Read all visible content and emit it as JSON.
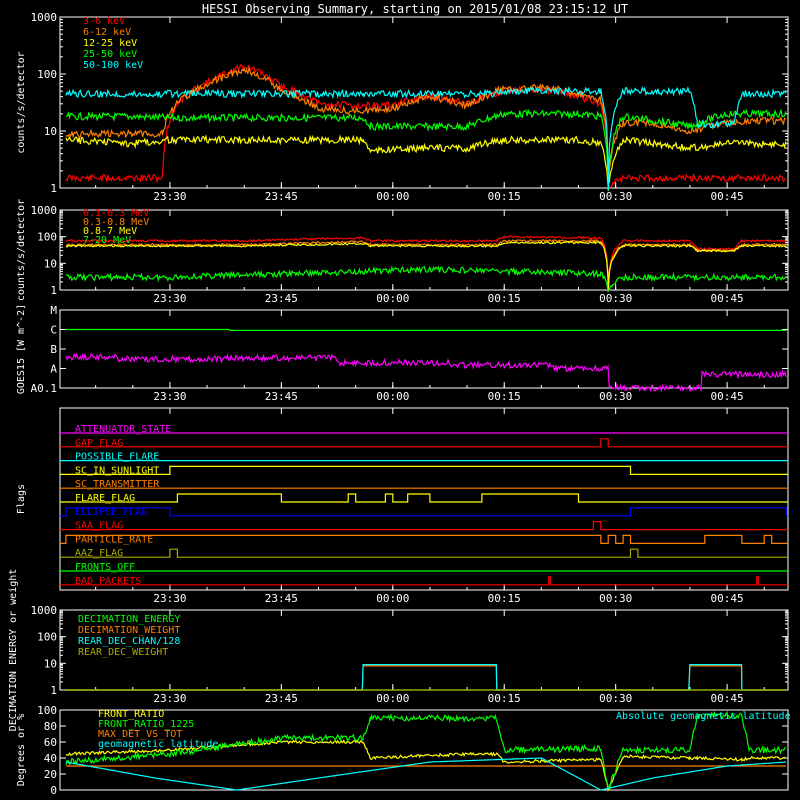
{
  "title": "HESSI Observing Summary, starting on 2015/01/08 23:15:12 UT",
  "colors": {
    "background": "#000000",
    "foreground": "#ffffff",
    "red": "#ff0000",
    "orange": "#ff7f00",
    "yellow": "#ffff00",
    "green": "#00ff00",
    "cyan": "#00ffff",
    "magenta": "#ff00ff",
    "blue": "#0000ff",
    "olive": "#aaaa00",
    "gold": "#ffbf00"
  },
  "time_ticks": [
    "23:30",
    "23:45",
    "00:00",
    "00:15",
    "00:30",
    "00:45"
  ],
  "chart_data": [
    {
      "type": "line",
      "ylabel": "counts/s/detector",
      "yscale": "log",
      "ylim": [
        1,
        1000
      ],
      "yticks": [
        "1",
        "10",
        "100",
        "1000"
      ],
      "legend_placement": "top-left",
      "series": [
        {
          "name": "3-6 keV",
          "color": "red",
          "x": [
            "23:16",
            "23:29",
            "23:31",
            "23:36",
            "23:40",
            "23:45",
            "23:50",
            "23:55",
            "00:00",
            "00:05",
            "00:10",
            "00:15",
            "00:20",
            "00:25",
            "00:28",
            "00:29",
            "00:31",
            "00:35",
            "00:40",
            "00:45",
            "00:50",
            "00:53"
          ],
          "y": [
            1.5,
            1.5,
            30,
            80,
            140,
            60,
            30,
            28,
            28,
            40,
            30,
            50,
            55,
            40,
            30,
            1,
            1.5,
            1.5,
            1.5,
            1.5,
            1.5,
            1.5
          ]
        },
        {
          "name": "6-12 keV",
          "color": "orange",
          "x": [
            "23:16",
            "23:29",
            "23:31",
            "23:36",
            "23:40",
            "23:45",
            "23:50",
            "23:55",
            "00:00",
            "00:05",
            "00:10",
            "00:15",
            "00:20",
            "00:25",
            "00:28",
            "00:29",
            "00:31",
            "00:35",
            "00:40",
            "00:45",
            "00:50",
            "00:53"
          ],
          "y": [
            9,
            9,
            30,
            75,
            120,
            50,
            25,
            22,
            25,
            40,
            28,
            55,
            60,
            45,
            35,
            1,
            14,
            14,
            10,
            14,
            15,
            15
          ]
        },
        {
          "name": "12-25 keV",
          "color": "yellow",
          "x": [
            "23:16",
            "23:25",
            "23:30",
            "23:35",
            "23:40",
            "23:50",
            "23:56",
            "23:57",
            "00:05",
            "00:10",
            "00:15",
            "00:20",
            "00:25",
            "00:28",
            "00:29",
            "00:31",
            "00:40",
            "00:45",
            "00:50",
            "00:53"
          ],
          "y": [
            7,
            6,
            7,
            7,
            7,
            7,
            7,
            4.5,
            5,
            5,
            7,
            7,
            7,
            6,
            1,
            7,
            5,
            6,
            6,
            6
          ]
        },
        {
          "name": "25-50 keV",
          "color": "green",
          "x": [
            "23:16",
            "23:25",
            "23:30",
            "23:40",
            "23:50",
            "23:56",
            "23:57",
            "00:05",
            "00:10",
            "00:15",
            "00:20",
            "00:25",
            "00:28",
            "00:29",
            "00:31",
            "00:40",
            "00:45",
            "00:50",
            "00:53"
          ],
          "y": [
            18,
            18,
            17,
            17,
            17,
            17,
            12,
            12,
            12,
            20,
            20,
            20,
            18,
            1,
            18,
            12,
            20,
            20,
            20
          ]
        },
        {
          "name": "50-100 keV",
          "color": "cyan",
          "x": [
            "23:16",
            "23:25",
            "23:30",
            "23:40",
            "23:50",
            "23:56",
            "00:05",
            "00:10",
            "00:14",
            "00:15",
            "00:20",
            "00:25",
            "00:28",
            "00:29",
            "00:31",
            "00:40",
            "00:41",
            "00:46",
            "00:47",
            "00:53"
          ],
          "y": [
            45,
            45,
            45,
            45,
            45,
            45,
            45,
            45,
            45,
            50,
            50,
            50,
            50,
            1,
            50,
            50,
            13,
            13,
            45,
            45
          ]
        }
      ]
    },
    {
      "type": "line",
      "ylabel": "counts/s/detector",
      "yscale": "log",
      "ylim": [
        1,
        1000
      ],
      "yticks": [
        "1",
        "10",
        "100",
        "1000"
      ],
      "legend_placement": "top-left",
      "series": [
        {
          "name": "0.1-0.3 MeV",
          "color": "red",
          "x": [
            "23:16",
            "23:40",
            "23:56",
            "23:57",
            "00:14",
            "00:15",
            "00:28",
            "00:29",
            "00:31",
            "00:40",
            "00:41",
            "00:46",
            "00:47",
            "00:53"
          ],
          "y": [
            70,
            70,
            90,
            70,
            70,
            100,
            90,
            1,
            70,
            70,
            35,
            35,
            70,
            70
          ]
        },
        {
          "name": "0.3-0.8 MeV",
          "color": "orange",
          "x": [
            "23:16",
            "23:40",
            "23:56",
            "23:57",
            "00:14",
            "00:15",
            "00:28",
            "00:29",
            "00:31",
            "00:40",
            "00:41",
            "00:46",
            "00:47",
            "00:53"
          ],
          "y": [
            50,
            50,
            65,
            50,
            50,
            70,
            70,
            1,
            50,
            50,
            30,
            30,
            50,
            50
          ]
        },
        {
          "name": "0.8-7 MeV",
          "color": "yellow",
          "x": [
            "23:16",
            "23:40",
            "23:56",
            "23:57",
            "00:14",
            "00:15",
            "00:28",
            "00:29",
            "00:31",
            "00:40",
            "00:41",
            "00:46",
            "00:47",
            "00:53"
          ],
          "y": [
            45,
            45,
            55,
            45,
            45,
            60,
            60,
            1,
            45,
            45,
            30,
            30,
            45,
            45
          ]
        },
        {
          "name": "7-20 MeV",
          "color": "green",
          "x": [
            "23:16",
            "23:30",
            "23:45",
            "23:56",
            "00:05",
            "00:15",
            "00:28",
            "00:29",
            "00:31",
            "00:40",
            "00:45",
            "00:53"
          ],
          "y": [
            3,
            3,
            4,
            5,
            6,
            5,
            4,
            1,
            3,
            3,
            3,
            3
          ]
        }
      ]
    },
    {
      "type": "line",
      "ylabel": "GOES15 [W m^-2]",
      "yscale": "log",
      "ylim": [
        "A0.1",
        "M"
      ],
      "yticks": [
        "A0.1",
        "A",
        "B",
        "C",
        "M"
      ],
      "series": [
        {
          "name": "GOES long",
          "color": "green",
          "x": [
            "23:16",
            "00:00",
            "00:53"
          ],
          "y": [
            "C1.0",
            "C0.9",
            "C0.9"
          ]
        },
        {
          "name": "GOES short",
          "color": "magenta",
          "x": [
            "23:16",
            "23:30",
            "23:45",
            "00:00",
            "00:15",
            "00:28",
            "00:30",
            "00:53"
          ],
          "y": [
            "A4",
            "A3",
            "A3.5",
            "A2",
            "A1.5",
            "A1",
            "A0.1",
            "A0.5"
          ]
        }
      ]
    },
    {
      "type": "line",
      "ylabel": "Flags",
      "flags": [
        {
          "name": "ATTENUATOR_STATE",
          "color": "magenta",
          "on": []
        },
        {
          "name": "GAP_FLAG",
          "color": "red",
          "on": [
            [
              "00:28",
              "00:29"
            ]
          ]
        },
        {
          "name": "POSSIBLE_FLARE",
          "color": "cyan",
          "on": []
        },
        {
          "name": "SC_IN_SUNLIGHT",
          "color": "yellow",
          "on": [
            [
              "23:30",
              "00:32"
            ]
          ]
        },
        {
          "name": "SC_TRANSMITTER",
          "color": "orange",
          "on": []
        },
        {
          "name": "FLARE_FLAG",
          "color": "yellow",
          "on": [
            [
              "23:31",
              "23:45"
            ],
            [
              "23:54",
              "23:55"
            ],
            [
              "23:59",
              "00:00"
            ],
            [
              "00:02",
              "00:05"
            ],
            [
              "00:12",
              "00:25"
            ]
          ]
        },
        {
          "name": "ECLIPSE_FLAG",
          "color": "blue",
          "on": [
            [
              "23:16",
              "23:30"
            ],
            [
              "00:32",
              "00:53"
            ]
          ]
        },
        {
          "name": "SAA_FLAG",
          "color": "red",
          "on": [
            [
              "00:27",
              "00:28"
            ]
          ]
        },
        {
          "name": "PARTICLE_RATE",
          "color": "orange",
          "on": [
            [
              "23:16",
              "00:28"
            ],
            [
              "00:29",
              "00:30"
            ],
            [
              "00:31",
              "00:32"
            ],
            [
              "00:42",
              "00:47"
            ],
            [
              "00:50",
              "00:51"
            ]
          ]
        },
        {
          "name": "AAZ_FLAG",
          "color": "olive",
          "on": [
            [
              "23:30",
              "23:31"
            ],
            [
              "00:32",
              "00:33"
            ]
          ]
        },
        {
          "name": "FRONTS_OFF",
          "color": "green",
          "on": []
        },
        {
          "name": "BAD_PACKETS",
          "color": "red",
          "on": [
            [
              "00:21",
              "00:21"
            ],
            [
              "00:49",
              "00:49"
            ]
          ]
        }
      ]
    },
    {
      "type": "line",
      "ylabel": "DECIMATION ENERGY or weight",
      "yscale": "log",
      "ylim": [
        1,
        1000
      ],
      "yticks": [
        "1",
        "10",
        "100",
        "1000"
      ],
      "legend_placement": "top-left",
      "series": [
        {
          "name": "DECIMATION_ENERGY",
          "color": "green",
          "x": [
            "23:16",
            "00:53"
          ],
          "y": [
            1,
            1
          ]
        },
        {
          "name": "DECIMATION_WEIGHT",
          "color": "orange",
          "x": [
            "23:16",
            "23:56",
            "23:56",
            "00:14",
            "00:14",
            "00:40",
            "00:40",
            "00:47",
            "00:47",
            "00:53"
          ],
          "y": [
            1,
            1,
            8,
            8,
            1,
            1,
            8,
            8,
            1,
            1
          ]
        },
        {
          "name": "REAR_DEC_CHAN/128",
          "color": "cyan",
          "x": [
            "23:16",
            "23:56",
            "23:56",
            "00:14",
            "00:14",
            "00:40",
            "00:40",
            "00:47",
            "00:47",
            "00:53"
          ],
          "y": [
            1,
            1,
            9,
            9,
            1,
            1,
            9,
            9,
            1,
            1
          ]
        },
        {
          "name": "REAR_DEC_WEIGHT",
          "color": "olive",
          "x": [
            "23:16",
            "00:53"
          ],
          "y": [
            1,
            1
          ]
        }
      ]
    },
    {
      "type": "line",
      "ylabel": "Degrees or %",
      "ylim": [
        0,
        100
      ],
      "yticks": [
        "0",
        "20",
        "40",
        "60",
        "80",
        "100"
      ],
      "legend_placement": "top-left",
      "annotation": "Absolute geomagnetic latitude",
      "series": [
        {
          "name": "FRONT_RATIO",
          "color": "yellow",
          "x": [
            "23:16",
            "23:30",
            "23:45",
            "23:56",
            "23:57",
            "00:10",
            "00:14",
            "00:15",
            "00:28",
            "00:29",
            "00:31",
            "00:40",
            "00:41",
            "00:47",
            "00:48",
            "00:53"
          ],
          "y": [
            45,
            50,
            60,
            60,
            40,
            45,
            45,
            35,
            38,
            1,
            42,
            40,
            40,
            38,
            40,
            40
          ]
        },
        {
          "name": "FRONT_RATIO_1225",
          "color": "green",
          "x": [
            "23:16",
            "23:30",
            "23:45",
            "23:56",
            "23:57",
            "00:14",
            "00:15",
            "00:28",
            "00:29",
            "00:31",
            "00:40",
            "00:41",
            "00:47",
            "00:48",
            "00:53"
          ],
          "y": [
            35,
            45,
            65,
            65,
            90,
            90,
            50,
            52,
            1,
            50,
            50,
            93,
            93,
            50,
            50
          ]
        },
        {
          "name": "MAX_DET_VS_TOT",
          "color": "orange",
          "x": [
            "23:16",
            "00:53"
          ],
          "y": [
            30,
            30
          ]
        },
        {
          "name": "geomagnetic latitude",
          "color": "cyan",
          "x": [
            "23:16",
            "23:28",
            "23:39",
            "23:50",
            "24:05",
            "24:20",
            "00:28",
            "00:35",
            "00:45",
            "00:53"
          ],
          "y": [
            35,
            15,
            0,
            15,
            35,
            40,
            0,
            15,
            30,
            35
          ]
        }
      ]
    }
  ]
}
